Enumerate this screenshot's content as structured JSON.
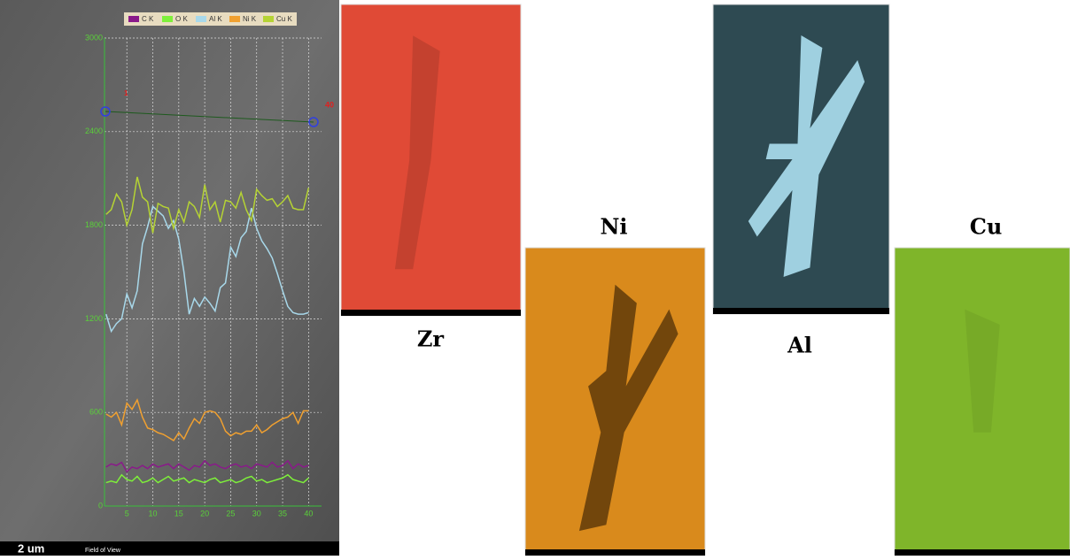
{
  "chart_data": {
    "type": "line",
    "x": [
      1,
      2,
      3,
      4,
      5,
      6,
      7,
      8,
      9,
      10,
      11,
      12,
      13,
      14,
      15,
      16,
      17,
      18,
      19,
      20,
      21,
      22,
      23,
      24,
      25,
      26,
      27,
      28,
      29,
      30,
      31,
      32,
      33,
      34,
      35,
      36,
      37,
      38,
      39,
      40
    ],
    "xlim": [
      0.7,
      42.5
    ],
    "xticks": [
      5,
      10,
      15,
      20,
      25,
      30,
      35,
      40
    ],
    "ylim": [
      0,
      3000
    ],
    "yticks": [
      0,
      600,
      1200,
      1800,
      2400,
      3000
    ],
    "grid": true,
    "series": [
      {
        "name": "C K",
        "color": "#8a1a8a",
        "values": [
          250,
          270,
          260,
          280,
          220,
          250,
          240,
          260,
          240,
          270,
          250,
          260,
          270,
          240,
          270,
          250,
          230,
          260,
          250,
          290,
          260,
          270,
          250,
          240,
          260,
          270,
          250,
          260,
          240,
          270,
          260,
          250,
          280,
          250,
          260,
          290,
          240,
          270,
          250,
          260
        ]
      },
      {
        "name": "O K",
        "color": "#7ef03a",
        "values": [
          150,
          160,
          150,
          200,
          170,
          160,
          190,
          150,
          160,
          180,
          150,
          170,
          190,
          160,
          170,
          180,
          150,
          170,
          160,
          150,
          170,
          180,
          150,
          160,
          170,
          150,
          160,
          180,
          190,
          160,
          170,
          150,
          160,
          170,
          180,
          200,
          170,
          160,
          150,
          180
        ]
      },
      {
        "name": "Al K",
        "color": "#a8d8ea",
        "values": [
          1230,
          1120,
          1170,
          1200,
          1360,
          1270,
          1380,
          1680,
          1790,
          1920,
          1890,
          1860,
          1780,
          1830,
          1710,
          1500,
          1230,
          1330,
          1280,
          1340,
          1300,
          1250,
          1400,
          1430,
          1660,
          1600,
          1720,
          1760,
          1910,
          1780,
          1700,
          1650,
          1590,
          1490,
          1380,
          1280,
          1240,
          1230,
          1230,
          1240
        ]
      },
      {
        "name": "Ni K",
        "color": "#f0a030",
        "values": [
          590,
          570,
          600,
          520,
          660,
          620,
          680,
          570,
          500,
          490,
          470,
          460,
          440,
          420,
          470,
          430,
          500,
          560,
          530,
          600,
          610,
          600,
          560,
          480,
          450,
          470,
          460,
          480,
          480,
          520,
          470,
          490,
          520,
          540,
          560,
          570,
          600,
          530,
          610,
          610
        ]
      },
      {
        "name": "Cu K",
        "color": "#b5d334",
        "values": [
          1870,
          1900,
          2000,
          1950,
          1800,
          1900,
          2110,
          1980,
          1950,
          1750,
          1940,
          1920,
          1910,
          1780,
          1900,
          1820,
          1950,
          1920,
          1850,
          2060,
          1900,
          1950,
          1820,
          1960,
          1950,
          1910,
          2010,
          1900,
          1830,
          2030,
          1990,
          1960,
          1970,
          1920,
          1950,
          1990,
          1910,
          1900,
          1900,
          2040
        ]
      }
    ]
  },
  "line_scan": {
    "start_label": "1",
    "end_label": "40"
  },
  "image": {
    "scale_bar": "2 um",
    "caption": "Field of View"
  },
  "maps": [
    {
      "label": "Zr",
      "color": "#e04a36"
    },
    {
      "label": "Ni",
      "color": "#d98a1c"
    },
    {
      "label": "Al",
      "color": "#2e4a52"
    },
    {
      "label": "Cu",
      "color": "#7fb52a"
    }
  ]
}
